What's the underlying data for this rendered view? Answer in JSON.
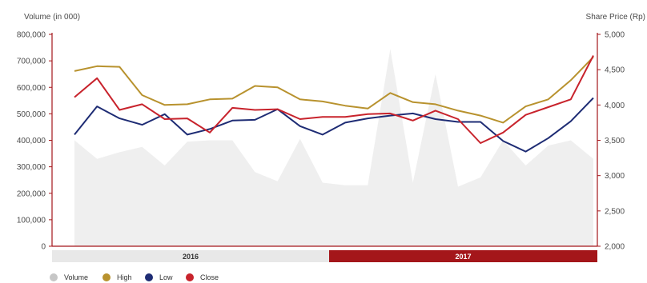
{
  "chart_data": {
    "type": "line",
    "y_left_label": "Volume (in 000)",
    "y_right_label": "Share Price (Rp)",
    "y_left_ticks": [
      "0",
      "100,000",
      "200,000",
      "300,000",
      "400,000",
      "500,000",
      "600,000",
      "700,000",
      "800,000"
    ],
    "y_right_ticks": [
      "2,000",
      "2,500",
      "3,000",
      "3,500",
      "4,000",
      "4,500",
      "5,000"
    ],
    "ylim_left": [
      0,
      800000
    ],
    "ylim_right": [
      2000,
      5000
    ],
    "periods": [
      {
        "label": "2016",
        "color": "#e8e8e8",
        "text_color": "#333333"
      },
      {
        "label": "2017",
        "color": "#a4161a",
        "text_color": "#ffffff"
      }
    ],
    "volume": {
      "name": "Volume",
      "color": "#d9d9d9",
      "fill": "#efefef",
      "values": [
        400000,
        330000,
        355000,
        375000,
        305000,
        395000,
        400000,
        400000,
        280000,
        245000,
        405000,
        240000,
        230000,
        230000,
        745000,
        240000,
        650000,
        225000,
        260000,
        400000,
        305000,
        380000,
        400000,
        330000
      ]
    },
    "series": [
      {
        "name": "High",
        "color": "#b8922e",
        "values": [
          4480,
          4550,
          4540,
          4140,
          4000,
          4010,
          4080,
          4090,
          4270,
          4250,
          4080,
          4050,
          3990,
          3950,
          4170,
          4040,
          4010,
          3920,
          3850,
          3750,
          3980,
          4080,
          4350,
          4680
        ]
      },
      {
        "name": "Low",
        "color": "#1e2c74",
        "values": [
          3580,
          3980,
          3810,
          3720,
          3870,
          3580,
          3660,
          3780,
          3790,
          3940,
          3700,
          3580,
          3750,
          3810,
          3850,
          3880,
          3800,
          3760,
          3760,
          3490,
          3340,
          3530,
          3770,
          4100
        ]
      },
      {
        "name": "Close",
        "color": "#c8232c",
        "values": [
          4110,
          4380,
          3930,
          4010,
          3800,
          3810,
          3610,
          3960,
          3930,
          3940,
          3800,
          3830,
          3830,
          3870,
          3880,
          3780,
          3920,
          3800,
          3460,
          3610,
          3860,
          3970,
          4080,
          4700
        ]
      }
    ]
  }
}
